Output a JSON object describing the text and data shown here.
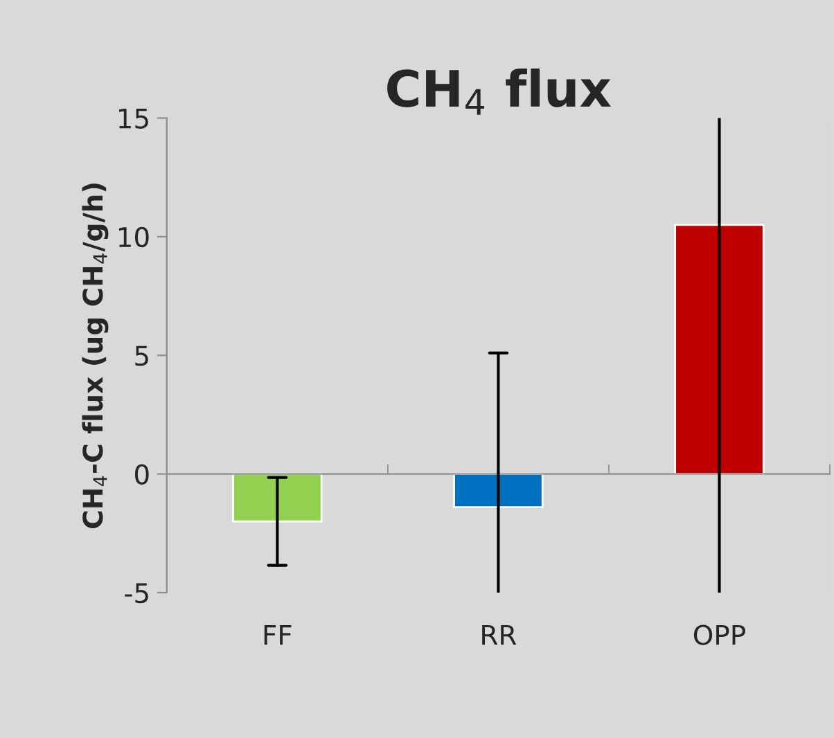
{
  "chart_data": {
    "type": "bar",
    "title": "CH$_{4}$ flux",
    "ylabel": "CH$_{4}$-C flux (ug CH$_{4}$/g/h)",
    "categories": [
      "FF",
      "RR",
      "OPP"
    ],
    "values": [
      -2.0,
      -1.4,
      10.5
    ],
    "colors": [
      "#92d050",
      "#0070c0",
      "#c00000"
    ],
    "errors": [
      [
        -3.85,
        -0.15
      ],
      [
        -5,
        5.1
      ],
      [
        -5,
        15
      ]
    ],
    "ylim": [
      -5,
      15
    ],
    "yticks": [
      -5,
      0,
      5,
      10,
      15
    ],
    "grid": false,
    "legend": false
  }
}
